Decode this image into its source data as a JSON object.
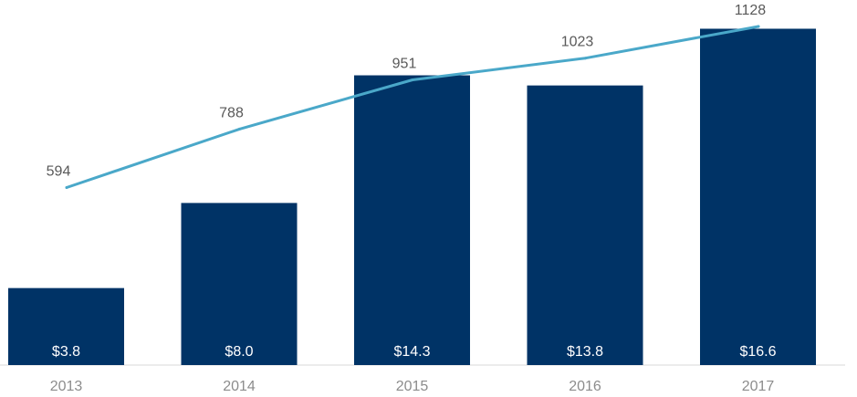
{
  "chart_data": {
    "type": "bar",
    "categories": [
      "2013",
      "2014",
      "2015",
      "2016",
      "2017"
    ],
    "series": [
      {
        "type": "bar",
        "values": [
          3.8,
          8.0,
          14.3,
          13.8,
          16.6
        ],
        "labels": [
          "$3.8",
          "$8.0",
          "$14.3",
          "$13.8",
          "$16.6"
        ],
        "color": "#003366"
      },
      {
        "type": "line",
        "values": [
          594,
          788,
          951,
          1023,
          1128
        ],
        "labels": [
          "594",
          "788",
          "951",
          "1023",
          "1128"
        ],
        "color": "#4aa8c9"
      }
    ],
    "grid": false,
    "legend": "none"
  }
}
